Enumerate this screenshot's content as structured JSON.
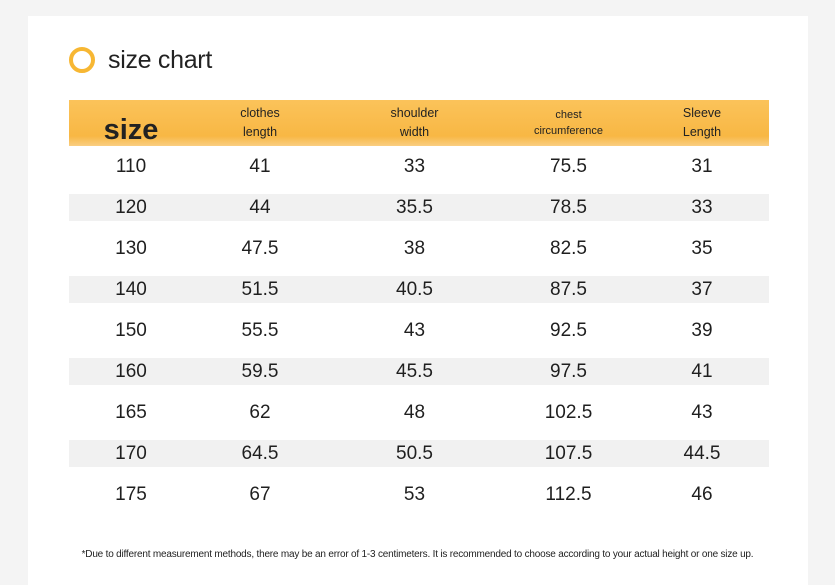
{
  "title": "size chart",
  "accent_color": "#f7b733",
  "table": {
    "headers": [
      {
        "lines": [
          "size"
        ]
      },
      {
        "lines": [
          "clothes",
          "length"
        ]
      },
      {
        "lines": [
          "shoulder",
          "width"
        ]
      },
      {
        "lines": [
          "chest",
          "circumference"
        ]
      },
      {
        "lines": [
          "Sleeve",
          "Length"
        ]
      }
    ],
    "rows": [
      [
        "110",
        "41",
        "33",
        "75.5",
        "31"
      ],
      [
        "120",
        "44",
        "35.5",
        "78.5",
        "33"
      ],
      [
        "130",
        "47.5",
        "38",
        "82.5",
        "35"
      ],
      [
        "140",
        "51.5",
        "40.5",
        "87.5",
        "37"
      ],
      [
        "150",
        "55.5",
        "43",
        "92.5",
        "39"
      ],
      [
        "160",
        "59.5",
        "45.5",
        "97.5",
        "41"
      ],
      [
        "165",
        "62",
        "48",
        "102.5",
        "43"
      ],
      [
        "170",
        "64.5",
        "50.5",
        "107.5",
        "44.5"
      ],
      [
        "175",
        "67",
        "53",
        "112.5",
        "46"
      ]
    ]
  },
  "note": "*Due to different measurement methods, there may be an error of 1-3 centimeters. It is recommended to choose according to your actual height or one size up."
}
